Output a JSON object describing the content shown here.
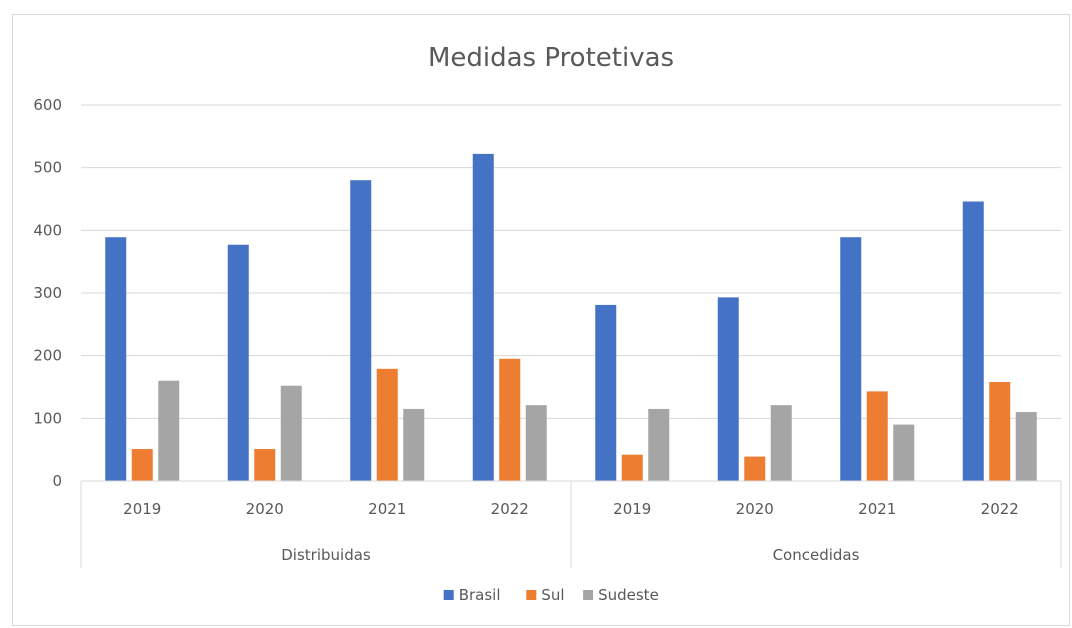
{
  "chart_data": {
    "type": "bar",
    "title": "Medidas Protetivas",
    "xlabel": "",
    "ylabel": "",
    "ylim": [
      0,
      600
    ],
    "yticks": [
      0,
      100,
      200,
      300,
      400,
      500,
      600
    ],
    "grid": true,
    "legend_position": "bottom",
    "groups": [
      {
        "name": "Distribuidas",
        "categories": [
          "2019",
          "2020",
          "2021",
          "2022"
        ]
      },
      {
        "name": "Concedidas",
        "categories": [
          "2019",
          "2020",
          "2021",
          "2022"
        ]
      }
    ],
    "series": [
      {
        "name": "Brasil",
        "color": "#4472c4",
        "values": [
          389,
          377,
          480,
          522,
          281,
          293,
          389,
          446
        ]
      },
      {
        "name": "Sul",
        "color": "#ed7d31",
        "values": [
          51,
          51,
          179,
          195,
          42,
          39,
          143,
          158
        ]
      },
      {
        "name": "Sudeste",
        "color": "#a5a5a5",
        "values": [
          160,
          152,
          115,
          121,
          115,
          121,
          90,
          110
        ]
      }
    ]
  }
}
